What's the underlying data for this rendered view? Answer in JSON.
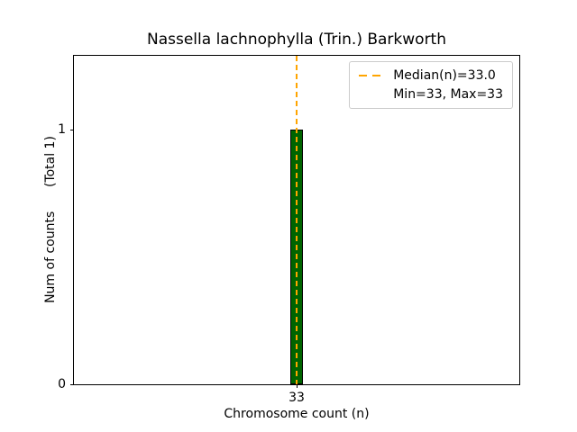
{
  "figure": {
    "background": "#ffffff"
  },
  "chart_data": {
    "type": "bar",
    "title": "Nassella lachnophylla (Trin.) Barkworth",
    "xlabel": "Chromosome count (n)",
    "ylabel": "Num of counts      (Total 1)",
    "total_counts": 1,
    "x": [
      33
    ],
    "values": [
      1
    ],
    "bar_width": 1,
    "xlim": [
      15.5,
      50.5
    ],
    "ylim": [
      0,
      1.29
    ],
    "xticks": [
      33
    ],
    "yticks": [
      0,
      1
    ],
    "median": 33.0,
    "min": 33,
    "max": 33,
    "grid": false,
    "colors": {
      "bar_fill": "#006400",
      "bar_edge": "#000000",
      "median_line": "#FFA500",
      "axis": "#000000",
      "legend_border": "#cccccc"
    },
    "legend": {
      "position": "upper right",
      "entries": [
        "Median(n)=33.0",
        "Min=33, Max=33"
      ]
    }
  }
}
